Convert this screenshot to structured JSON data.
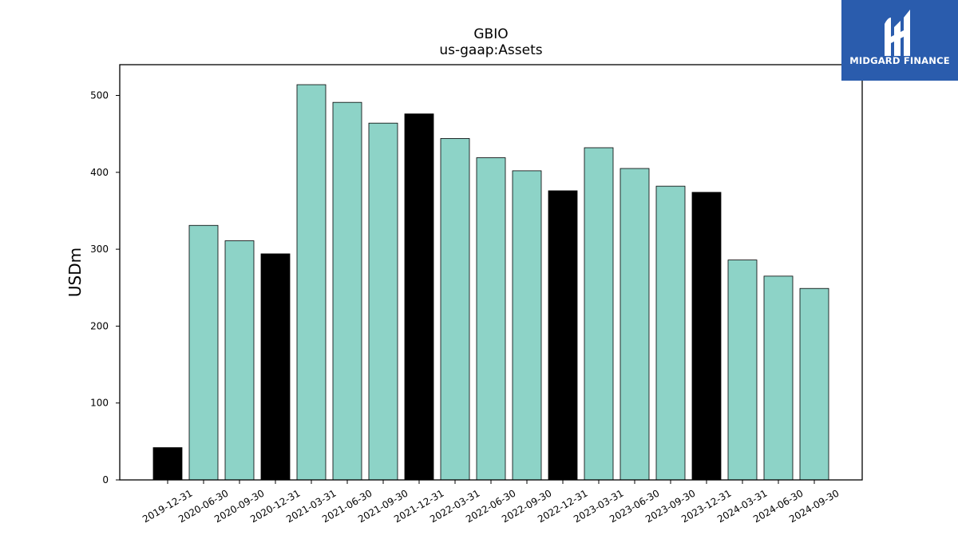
{
  "brand": {
    "name": "MIDGARD FINANCE",
    "color": "#2a5cad"
  },
  "chart_data": {
    "type": "bar",
    "title": "GBIO",
    "subtitle": "us-gaap:Assets",
    "xlabel": "",
    "ylabel": "USDm",
    "ylim": [
      0,
      540
    ],
    "yticks": [
      0,
      100,
      200,
      300,
      400,
      500
    ],
    "grid": false,
    "legend": "none",
    "colors": {
      "quarterly": "#8dd3c7",
      "annual": "#000000",
      "edge": "#000000"
    },
    "categories": [
      "2019-12-31",
      "2020-06-30",
      "2020-09-30",
      "2020-12-31",
      "2021-03-31",
      "2021-06-30",
      "2021-09-30",
      "2021-12-31",
      "2022-03-31",
      "2022-06-30",
      "2022-09-30",
      "2022-12-31",
      "2023-03-31",
      "2023-06-30",
      "2023-09-30",
      "2023-12-31",
      "2024-03-31",
      "2024-06-30",
      "2024-09-30"
    ],
    "values": [
      42,
      331,
      311,
      294,
      514,
      491,
      464,
      476,
      444,
      419,
      402,
      376,
      432,
      405,
      382,
      374,
      286,
      265,
      249
    ],
    "is_annual": [
      true,
      false,
      false,
      true,
      false,
      false,
      false,
      true,
      false,
      false,
      false,
      true,
      false,
      false,
      false,
      true,
      false,
      false,
      false
    ]
  }
}
